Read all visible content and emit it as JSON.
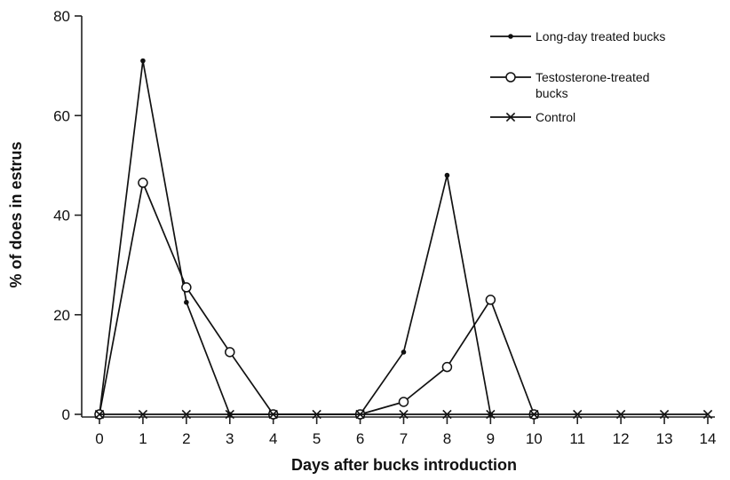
{
  "chart_data": {
    "type": "line",
    "title": "",
    "xlabel": "Days after bucks introduction",
    "ylabel": "% of does in estrus",
    "x": [
      0,
      1,
      2,
      3,
      4,
      5,
      6,
      7,
      8,
      9,
      10,
      11,
      12,
      13,
      14
    ],
    "xlim": [
      0,
      14
    ],
    "ylim": [
      0,
      80
    ],
    "yticks": [
      0,
      20,
      40,
      60,
      80
    ],
    "grid": false,
    "legend_position": "top-right",
    "series": [
      {
        "name": "Long-day treated bucks",
        "marker": "dot",
        "points": [
          [
            0,
            0
          ],
          [
            1,
            71
          ],
          [
            2,
            22.5
          ],
          [
            3,
            0
          ],
          [
            6,
            0
          ],
          [
            7,
            12.5
          ],
          [
            8,
            48
          ],
          [
            9,
            0
          ]
        ]
      },
      {
        "name": "Testosterone-treated bucks",
        "marker": "circle",
        "points": [
          [
            0,
            0
          ],
          [
            1,
            46.5
          ],
          [
            2,
            25.5
          ],
          [
            3,
            12.5
          ],
          [
            4,
            0
          ],
          [
            6,
            0
          ],
          [
            7,
            2.5
          ],
          [
            8,
            9.5
          ],
          [
            9,
            23
          ],
          [
            10,
            0
          ]
        ]
      },
      {
        "name": "Control",
        "marker": "x",
        "points": [
          [
            0,
            0
          ],
          [
            1,
            0
          ],
          [
            2,
            0
          ],
          [
            3,
            0
          ],
          [
            4,
            0
          ],
          [
            5,
            0
          ],
          [
            6,
            0
          ],
          [
            7,
            0
          ],
          [
            8,
            0
          ],
          [
            9,
            0
          ],
          [
            10,
            0
          ],
          [
            11,
            0
          ],
          [
            12,
            0
          ],
          [
            13,
            0
          ],
          [
            14,
            0
          ]
        ]
      }
    ]
  }
}
